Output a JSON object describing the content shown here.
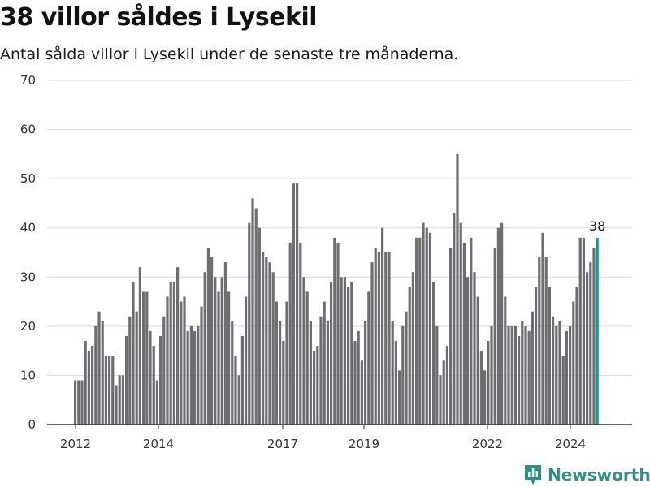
{
  "header": {
    "title": "38 villor såldes i Lysekil",
    "subtitle": "Antal sålda villor i Lysekil under de senaste tre månaderna."
  },
  "brand": {
    "name": "Newsworthy",
    "icon": "bar-chart-logo-icon",
    "color": "#2e8f86"
  },
  "colors": {
    "bar": "#6e6d72",
    "highlight": "#1a9a8e",
    "grid": "#d9d9d9",
    "axis": "#333333"
  },
  "chart_data": {
    "type": "bar",
    "title": "38 villor såldes i Lysekil",
    "subtitle": "Antal sålda villor i Lysekil under de senaste tre månaderna.",
    "xlabel": "",
    "ylabel": "",
    "ylim": [
      0,
      70
    ],
    "yticks": [
      0,
      10,
      20,
      30,
      40,
      50,
      60,
      70
    ],
    "xticks": [
      "2012",
      "2014",
      "2017",
      "2019",
      "2022",
      "2024"
    ],
    "grid": true,
    "period": "monthly, rolling three-month totals",
    "values": [
      9,
      9,
      9,
      17,
      15,
      16,
      20,
      23,
      21,
      14,
      14,
      14,
      8,
      10,
      10,
      18,
      22,
      29,
      23,
      32,
      27,
      27,
      19,
      16,
      9,
      18,
      22,
      26,
      29,
      29,
      32,
      25,
      26,
      19,
      20,
      19,
      20,
      24,
      31,
      36,
      34,
      30,
      27,
      30,
      33,
      27,
      21,
      14,
      10,
      18,
      26,
      41,
      46,
      44,
      40,
      35,
      34,
      33,
      31,
      25,
      21,
      17,
      25,
      37,
      49,
      49,
      37,
      30,
      27,
      21,
      15,
      16,
      22,
      25,
      21,
      29,
      38,
      37,
      30,
      30,
      28,
      29,
      17,
      19,
      13,
      21,
      27,
      33,
      36,
      35,
      40,
      35,
      35,
      21,
      17,
      11,
      20,
      23,
      28,
      31,
      38,
      38,
      41,
      40,
      39,
      29,
      20,
      10,
      13,
      16,
      36,
      43,
      55,
      41,
      37,
      30,
      38,
      31,
      26,
      15,
      11,
      17,
      20,
      36,
      40,
      41,
      26,
      20,
      20,
      20,
      18,
      21,
      20,
      19,
      23,
      28,
      34,
      39,
      34,
      28,
      22,
      20,
      21,
      14,
      19,
      20,
      25,
      28,
      38,
      38,
      31,
      33,
      36,
      38
    ],
    "highlight_value": 38
  }
}
